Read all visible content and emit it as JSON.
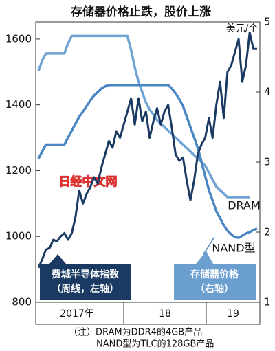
{
  "chart_data": {
    "type": "line",
    "title": "存储器价格止跌，股价上涨",
    "y2_unit": "美元/个",
    "x_labels": [
      "2017年",
      "18",
      "19"
    ],
    "ylim": [
      800,
      1652
    ],
    "yticks": [
      800,
      1000,
      1200,
      1400,
      1600
    ],
    "y2lim": [
      1,
      5
    ],
    "y2ticks": [
      1,
      2,
      3,
      4,
      5
    ],
    "grid": false,
    "series": [
      {
        "name": "费城半导体指数",
        "color": "#1b3a63",
        "axis": "y",
        "values": [
          905,
          930,
          960,
          965,
          990,
          985,
          1000,
          1010,
          990,
          1010,
          1060,
          1140,
          1100,
          1130,
          1150,
          1180,
          1160,
          1210,
          1250,
          1290,
          1270,
          1320,
          1300,
          1340,
          1380,
          1420,
          1340,
          1420,
          1350,
          1380,
          1300,
          1350,
          1390,
          1340,
          1380,
          1400,
          1330,
          1250,
          1230,
          1240,
          1170,
          1110,
          1170,
          1250,
          1280,
          1300,
          1360,
          1300,
          1400,
          1470,
          1360,
          1500,
          1520,
          1560,
          1600,
          1470,
          1520,
          1620,
          1570,
          1570
        ]
      },
      {
        "name": "DRAM",
        "color": "#6fa3d4",
        "axis": "y2",
        "values": [
          4.3,
          4.45,
          4.55,
          4.55,
          4.55,
          4.55,
          4.55,
          4.55,
          4.7,
          4.8,
          4.8,
          4.8,
          4.8,
          4.8,
          4.8,
          4.8,
          4.8,
          4.8,
          4.8,
          4.8,
          4.8,
          4.8,
          4.8,
          4.8,
          4.8,
          4.6,
          4.35,
          4.15,
          4.0,
          3.85,
          3.75,
          3.68,
          3.6,
          3.55,
          3.5,
          3.45,
          3.4,
          3.35,
          3.3,
          3.25,
          3.2,
          3.15,
          3.1,
          3.05,
          3.0,
          2.95,
          2.85,
          2.75,
          2.65,
          2.6,
          2.55,
          2.5,
          2.5,
          2.5,
          2.5,
          2.5,
          2.5,
          2.5,
          null,
          null
        ]
      },
      {
        "name": "NAND型",
        "color": "#4a86c3",
        "axis": "y2",
        "values": [
          3.05,
          3.15,
          3.25,
          3.25,
          3.25,
          3.25,
          3.25,
          3.25,
          3.35,
          3.45,
          3.55,
          3.65,
          3.72,
          3.8,
          3.88,
          3.95,
          4.0,
          4.05,
          4.08,
          4.1,
          4.1,
          4.1,
          4.1,
          4.1,
          4.1,
          4.1,
          4.1,
          4.1,
          4.1,
          4.1,
          4.1,
          4.1,
          4.1,
          4.1,
          4.1,
          4.1,
          4.05,
          3.98,
          3.9,
          3.8,
          3.65,
          3.5,
          3.35,
          3.2,
          3.0,
          2.8,
          2.6,
          2.45,
          2.3,
          2.2,
          2.1,
          2.02,
          1.97,
          1.93,
          1.92,
          1.95,
          1.98,
          2.0,
          2.03,
          2.05
        ]
      }
    ],
    "legend_boxes": [
      {
        "sub": "（周线，左轴）"
      },
      {
        "title": "存储器价格",
        "sub": "（右轴）"
      }
    ],
    "watermark": "日经中文网",
    "notes": [
      "（注）DRAM为DDR4的4GB产品",
      "NAND型为TLC的128GB产品"
    ]
  }
}
